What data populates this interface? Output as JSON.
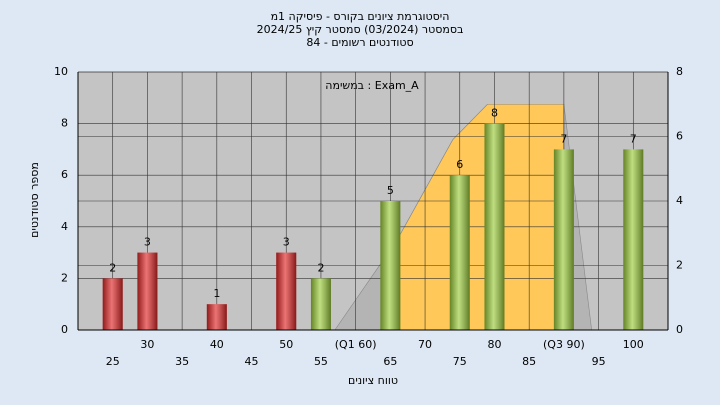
{
  "chart_data": {
    "type": "bar",
    "title_lines": [
      "היסטוגרמת ציונים בקורס - פיסיקה 1מ",
      "בסמסטר (03/2024) סמסטר קיץ 2024/25",
      "סטודנטים רשומים - 84"
    ],
    "annotation": "במשימה : Exam_A",
    "xlabel": "טווח ציונים",
    "ylabel": "מספר סטודנטים",
    "x": [
      25,
      30,
      40,
      50,
      55,
      65,
      75,
      80,
      90,
      100
    ],
    "values": [
      2,
      3,
      1,
      3,
      2,
      5,
      6,
      8,
      7,
      7
    ],
    "colors": [
      "#e02828",
      "#e02828",
      "#e02828",
      "#e02828",
      "#9ccc3c",
      "#9ccc3c",
      "#9ccc3c",
      "#9ccc3c",
      "#9ccc3c",
      "#9ccc3c"
    ],
    "areas": [
      {
        "color": "#b4b4b4",
        "axis": "y2",
        "x": [
          57,
          66,
          74,
          79,
          90,
          94
        ],
        "values": [
          0,
          2.8,
          5.9,
          7,
          7,
          0
        ]
      },
      {
        "color": "#ffc858",
        "axis": "y2",
        "x": [
          66,
          66,
          74,
          79,
          90,
          90
        ],
        "values": [
          0,
          2.8,
          5.9,
          7,
          7,
          0
        ]
      }
    ],
    "xlim": [
      20,
      105
    ],
    "ylim": [
      0,
      10
    ],
    "y2lim": [
      0,
      8
    ],
    "xticks": [
      25,
      30,
      35,
      40,
      45,
      50,
      55,
      {
        "value": 60,
        "label": "(Q1 60)"
      },
      65,
      70,
      75,
      80,
      85,
      {
        "value": 90,
        "label": "(Q3 90)"
      },
      95,
      100
    ],
    "yticks": [
      0,
      2,
      4,
      6,
      8,
      10
    ],
    "y2ticks": [
      0,
      2,
      4,
      6,
      8
    ],
    "grid": true
  }
}
